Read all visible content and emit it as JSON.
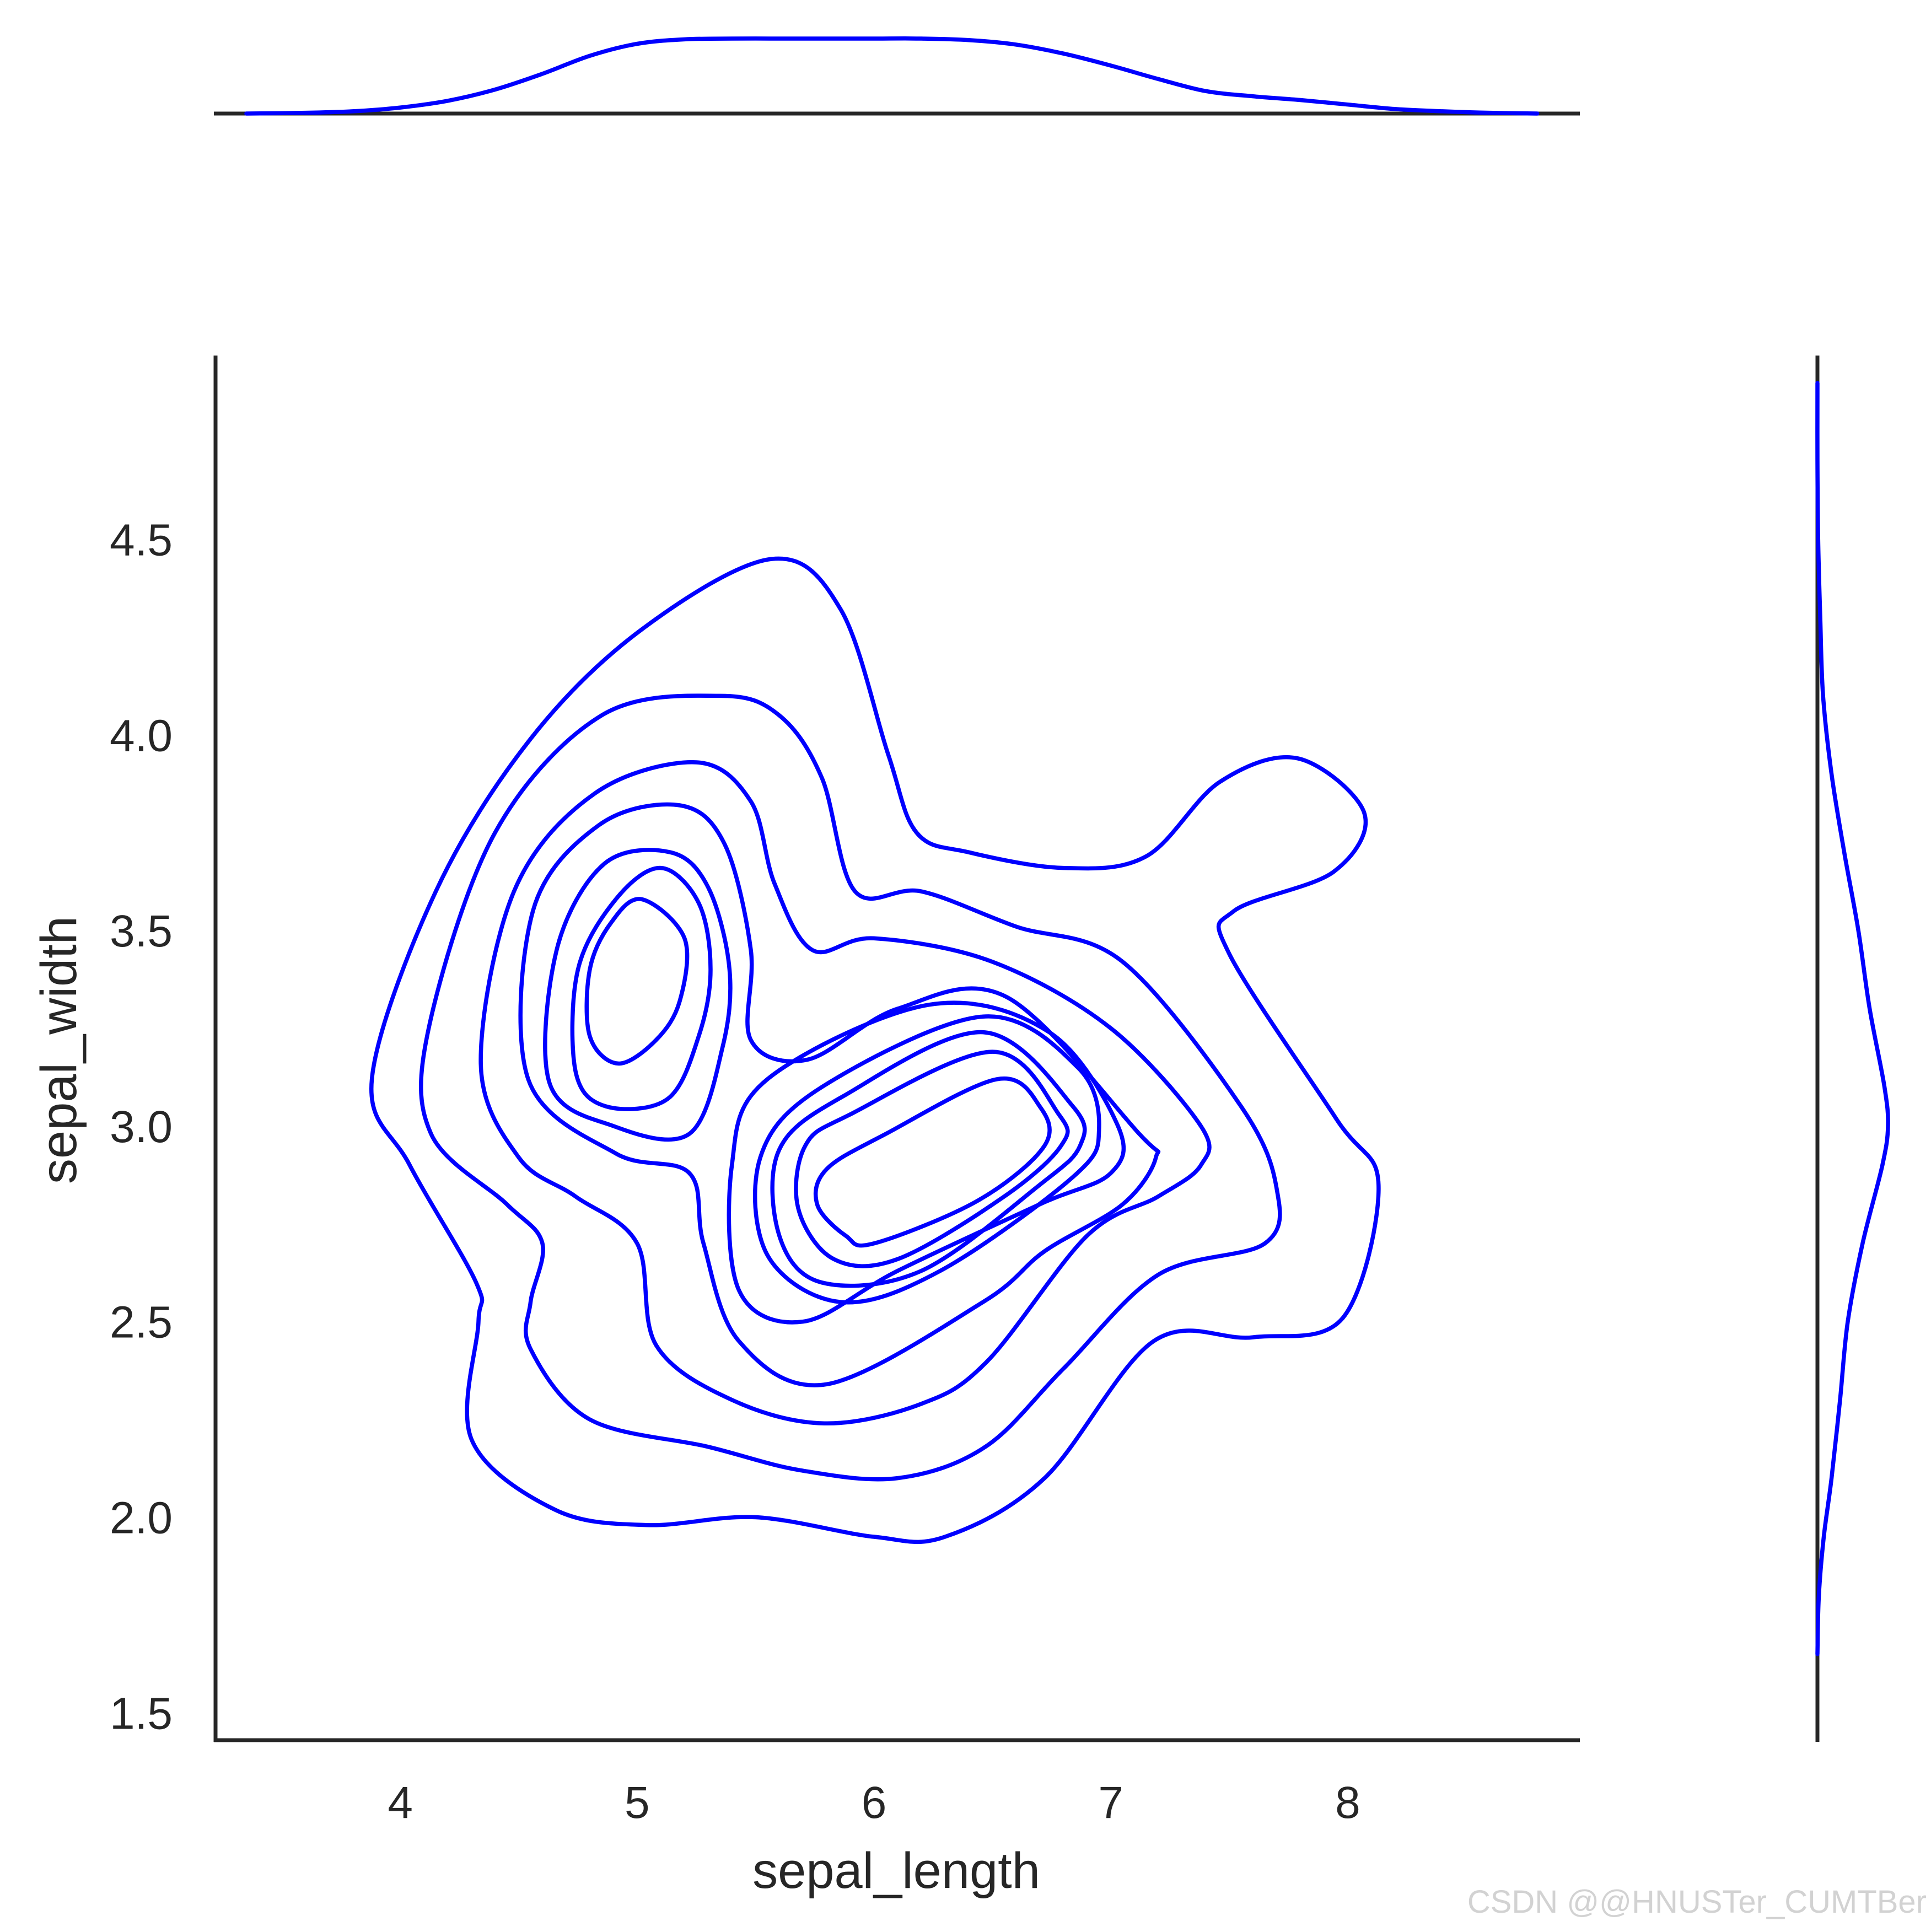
{
  "chart_data": {
    "type": "kde2d_joint",
    "xlabel": "sepal_length",
    "ylabel": "sepal_width",
    "xlim": [
      3.22,
      8.98
    ],
    "ylim": [
      1.43,
      4.97
    ],
    "x_ticks": [
      "4",
      "5",
      "6",
      "7",
      "8"
    ],
    "y_ticks": [
      "1.5",
      "2.0",
      "2.5",
      "3.0",
      "3.5",
      "4.0",
      "4.5"
    ],
    "color": "#0000ff",
    "grid": false,
    "contour_levels": 9,
    "contours": [
      {
        "level": 1,
        "points": [
          [
            5.57,
            4.45
          ],
          [
            5.86,
            4.32
          ],
          [
            6.06,
            3.95
          ],
          [
            6.18,
            3.75
          ],
          [
            6.4,
            3.7
          ],
          [
            6.8,
            3.66
          ],
          [
            7.15,
            3.69
          ],
          [
            7.46,
            3.88
          ],
          [
            7.79,
            3.94
          ],
          [
            8.07,
            3.8
          ],
          [
            7.94,
            3.65
          ],
          [
            7.52,
            3.55
          ],
          [
            7.5,
            3.44
          ],
          [
            7.95,
            3.02
          ],
          [
            8.13,
            2.85
          ],
          [
            7.98,
            2.51
          ],
          [
            7.6,
            2.46
          ],
          [
            7.18,
            2.45
          ],
          [
            6.72,
            2.1
          ],
          [
            6.3,
            1.95
          ],
          [
            6.0,
            1.95
          ],
          [
            5.5,
            2.0
          ],
          [
            5.04,
            1.98
          ],
          [
            4.65,
            2.02
          ],
          [
            4.3,
            2.2
          ],
          [
            4.33,
            2.5
          ],
          [
            4.32,
            2.6
          ],
          [
            4.04,
            2.9
          ],
          [
            3.88,
            3.12
          ],
          [
            4.15,
            3.6
          ],
          [
            4.55,
            3.99
          ],
          [
            5.02,
            4.27
          ],
          [
            5.57,
            4.45
          ]
        ]
      },
      {
        "level": 2,
        "points": [
          [
            5.35,
            4.1
          ],
          [
            5.6,
            4.05
          ],
          [
            5.78,
            3.89
          ],
          [
            5.92,
            3.6
          ],
          [
            6.2,
            3.6
          ],
          [
            6.6,
            3.51
          ],
          [
            7.05,
            3.42
          ],
          [
            7.55,
            3.05
          ],
          [
            7.7,
            2.84
          ],
          [
            7.65,
            2.7
          ],
          [
            7.2,
            2.62
          ],
          [
            6.8,
            2.38
          ],
          [
            6.47,
            2.18
          ],
          [
            6.1,
            2.1
          ],
          [
            5.69,
            2.12
          ],
          [
            5.3,
            2.18
          ],
          [
            4.8,
            2.25
          ],
          [
            4.55,
            2.43
          ],
          [
            4.55,
            2.55
          ],
          [
            4.6,
            2.7
          ],
          [
            4.45,
            2.8
          ],
          [
            4.13,
            2.98
          ],
          [
            4.12,
            3.25
          ],
          [
            4.4,
            3.75
          ],
          [
            4.85,
            4.05
          ],
          [
            5.35,
            4.1
          ]
        ]
      },
      {
        "level": 3,
        "points": [
          [
            5.25,
            3.93
          ],
          [
            5.48,
            3.83
          ],
          [
            5.58,
            3.62
          ],
          [
            5.74,
            3.45
          ],
          [
            6.0,
            3.48
          ],
          [
            6.5,
            3.42
          ],
          [
            7.0,
            3.25
          ],
          [
            7.38,
            3.0
          ],
          [
            7.38,
            2.9
          ],
          [
            7.2,
            2.82
          ],
          [
            6.9,
            2.72
          ],
          [
            6.48,
            2.4
          ],
          [
            6.2,
            2.29
          ],
          [
            5.79,
            2.24
          ],
          [
            5.4,
            2.3
          ],
          [
            5.08,
            2.44
          ],
          [
            5.0,
            2.7
          ],
          [
            4.74,
            2.82
          ],
          [
            4.5,
            2.92
          ],
          [
            4.34,
            3.16
          ],
          [
            4.48,
            3.6
          ],
          [
            4.82,
            3.85
          ],
          [
            5.25,
            3.93
          ]
        ]
      },
      {
        "level": 4,
        "points": [
          [
            5.18,
            3.82
          ],
          [
            5.37,
            3.72
          ],
          [
            5.48,
            3.45
          ],
          [
            5.48,
            3.22
          ],
          [
            5.72,
            3.17
          ],
          [
            6.1,
            3.3
          ],
          [
            6.56,
            3.33
          ],
          [
            7.12,
            2.98
          ],
          [
            7.19,
            2.92
          ],
          [
            7.05,
            2.8
          ],
          [
            6.72,
            2.68
          ],
          [
            6.46,
            2.55
          ],
          [
            5.8,
            2.34
          ],
          [
            5.43,
            2.45
          ],
          [
            5.28,
            2.7
          ],
          [
            5.22,
            2.88
          ],
          [
            4.91,
            2.93
          ],
          [
            4.54,
            3.12
          ],
          [
            4.56,
            3.55
          ],
          [
            4.84,
            3.77
          ],
          [
            5.18,
            3.82
          ]
        ]
      },
      {
        "level": 5,
        "points": [
          [
            5.14,
            3.7
          ],
          [
            5.3,
            3.61
          ],
          [
            5.39,
            3.4
          ],
          [
            5.36,
            3.2
          ],
          [
            5.22,
            2.98
          ],
          [
            4.9,
            3.0
          ],
          [
            4.63,
            3.11
          ],
          [
            4.66,
            3.45
          ],
          [
            4.86,
            3.67
          ],
          [
            5.14,
            3.7
          ]
        ]
      },
      {
        "level": 6,
        "points": [
          [
            5.1,
            3.66
          ],
          [
            5.26,
            3.57
          ],
          [
            5.31,
            3.4
          ],
          [
            5.26,
            3.23
          ],
          [
            5.13,
            3.07
          ],
          [
            4.87,
            3.05
          ],
          [
            4.74,
            3.14
          ],
          [
            4.75,
            3.4
          ],
          [
            4.91,
            3.58
          ],
          [
            5.1,
            3.66
          ]
        ]
      },
      {
        "level": 7,
        "points": [
          [
            5.02,
            3.58
          ],
          [
            5.2,
            3.48
          ],
          [
            5.18,
            3.32
          ],
          [
            5.08,
            3.22
          ],
          [
            4.92,
            3.16
          ],
          [
            4.8,
            3.23
          ],
          [
            4.8,
            3.4
          ],
          [
            4.89,
            3.52
          ],
          [
            5.02,
            3.58
          ]
        ]
      },
      {
        "level": 5,
        "points": [
          [
            6.23,
            3.31
          ],
          [
            6.74,
            3.24
          ],
          [
            7.03,
            3.0
          ],
          [
            7.0,
            2.88
          ],
          [
            6.7,
            2.8
          ],
          [
            6.1,
            2.63
          ],
          [
            5.7,
            2.5
          ],
          [
            5.43,
            2.58
          ],
          [
            5.4,
            2.9
          ],
          [
            5.55,
            3.12
          ],
          [
            6.23,
            3.31
          ]
        ]
      },
      {
        "level": 6,
        "points": [
          [
            6.46,
            3.28
          ],
          [
            6.86,
            3.15
          ],
          [
            6.95,
            2.99
          ],
          [
            6.84,
            2.87
          ],
          [
            6.28,
            2.63
          ],
          [
            5.86,
            2.55
          ],
          [
            5.55,
            2.67
          ],
          [
            5.52,
            2.92
          ],
          [
            5.78,
            3.1
          ],
          [
            6.46,
            3.28
          ]
        ]
      },
      {
        "level": 7,
        "points": [
          [
            6.46,
            3.24
          ],
          [
            6.84,
            3.05
          ],
          [
            6.87,
            2.95
          ],
          [
            6.7,
            2.85
          ],
          [
            6.2,
            2.63
          ],
          [
            5.78,
            2.6
          ],
          [
            5.6,
            2.72
          ],
          [
            5.6,
            2.94
          ],
          [
            5.88,
            3.08
          ],
          [
            6.46,
            3.24
          ]
        ]
      },
      {
        "level": 8,
        "points": [
          [
            6.5,
            3.19
          ],
          [
            6.78,
            3.03
          ],
          [
            6.79,
            2.95
          ],
          [
            6.55,
            2.82
          ],
          [
            6.1,
            2.66
          ],
          [
            5.83,
            2.66
          ],
          [
            5.68,
            2.79
          ],
          [
            5.71,
            2.95
          ],
          [
            5.9,
            3.03
          ],
          [
            6.5,
            3.19
          ]
        ]
      },
      {
        "level": 9,
        "points": [
          [
            6.52,
            3.12
          ],
          [
            6.7,
            3.05
          ],
          [
            6.72,
            2.95
          ],
          [
            6.44,
            2.81
          ],
          [
            6.0,
            2.7
          ],
          [
            5.88,
            2.72
          ],
          [
            5.76,
            2.8
          ],
          [
            5.8,
            2.89
          ],
          [
            6.05,
            2.98
          ],
          [
            6.52,
            3.12
          ]
        ]
      }
    ],
    "marginal_x": {
      "x": [
        3.35,
        3.6,
        3.8,
        4.0,
        4.2,
        4.4,
        4.6,
        4.8,
        5.0,
        5.2,
        5.4,
        5.6,
        5.8,
        6.0,
        6.2,
        6.4,
        6.6,
        6.8,
        7.0,
        7.2,
        7.4,
        7.6,
        7.8,
        8.0,
        8.2,
        8.4,
        8.6,
        8.8
      ],
      "density": [
        0.0,
        0.01,
        0.03,
        0.08,
        0.17,
        0.32,
        0.53,
        0.77,
        0.93,
        0.99,
        1.0,
        1.0,
        1.0,
        1.0,
        1.0,
        0.98,
        0.92,
        0.8,
        0.64,
        0.46,
        0.3,
        0.23,
        0.18,
        0.12,
        0.06,
        0.03,
        0.01,
        0.0
      ]
    },
    "marginal_y": {
      "y": [
        1.65,
        1.8,
        1.95,
        2.1,
        2.3,
        2.5,
        2.7,
        2.9,
        3.0,
        3.1,
        3.3,
        3.5,
        3.7,
        3.9,
        4.1,
        4.3,
        4.5,
        4.7,
        4.9
      ],
      "density": [
        0.0,
        0.02,
        0.09,
        0.2,
        0.32,
        0.43,
        0.64,
        0.92,
        1.0,
        0.95,
        0.74,
        0.58,
        0.38,
        0.2,
        0.08,
        0.04,
        0.01,
        0.0,
        0.0
      ]
    }
  },
  "watermark": "CSDN @@HNUSTer_CUMTBer"
}
